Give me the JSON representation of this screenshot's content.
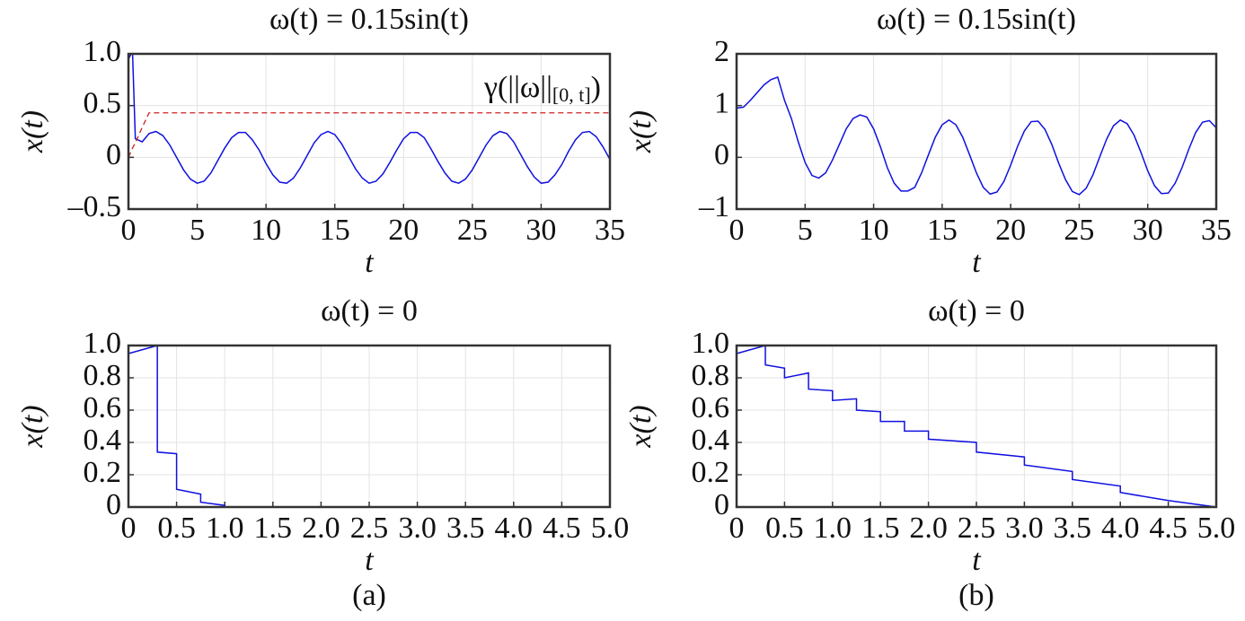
{
  "chart_data": [
    {
      "type": "line",
      "title": "ω(t) = 0.15sin(t)",
      "xlabel": "t",
      "ylabel": "x(t)",
      "x": [
        0,
        0.2,
        0.3,
        0.5,
        1,
        1.5,
        2,
        2.5,
        3,
        3.5,
        4,
        4.5,
        5,
        5.5,
        6,
        6.5,
        7,
        7.5,
        8,
        8.5,
        9,
        9.5,
        10,
        10.5,
        11,
        11.5,
        12,
        12.5,
        13,
        13.5,
        14,
        14.5,
        15,
        15.5,
        16,
        16.5,
        17,
        17.5,
        18,
        18.5,
        19,
        19.5,
        20,
        20.5,
        21,
        21.5,
        22,
        22.5,
        23,
        23.5,
        24,
        24.5,
        25,
        25.5,
        26,
        26.5,
        27,
        27.5,
        28,
        28.5,
        29,
        29.5,
        30,
        30.5,
        31,
        31.5,
        32,
        32.5,
        33,
        33.5,
        34,
        34.5,
        35
      ],
      "series": [
        {
          "color": "#1010e0",
          "style": "solid",
          "values": [
            0.95,
            1.0,
            1.0,
            0.18,
            0.15,
            0.23,
            0.25,
            0.21,
            0.12,
            0,
            -0.12,
            -0.21,
            -0.25,
            -0.23,
            -0.15,
            -0.03,
            0.09,
            0.19,
            0.24,
            0.24,
            0.17,
            0.07,
            -0.06,
            -0.17,
            -0.24,
            -0.25,
            -0.2,
            -0.1,
            0.02,
            0.14,
            0.22,
            0.25,
            0.22,
            0.13,
            0.01,
            -0.11,
            -0.2,
            -0.25,
            -0.23,
            -0.16,
            -0.05,
            0.07,
            0.18,
            0.24,
            0.24,
            0.19,
            0.08,
            -0.04,
            -0.15,
            -0.23,
            -0.25,
            -0.21,
            -0.12,
            0,
            0.12,
            0.21,
            0.25,
            0.23,
            0.15,
            0.03,
            -0.09,
            -0.19,
            -0.25,
            -0.24,
            -0.17,
            -0.07,
            0.06,
            0.17,
            0.24,
            0.25,
            0.2,
            0.1,
            -0.02
          ]
        },
        {
          "color": "#cc2020",
          "style": "dashed",
          "values": [
            0,
            0.06,
            0.09,
            0.14,
            0.29,
            0.43,
            0.43,
            0.43,
            0.43,
            0.43,
            0.43,
            0.43,
            0.43,
            0.43,
            0.43,
            0.43,
            0.43,
            0.43,
            0.43,
            0.43,
            0.43,
            0.43,
            0.43,
            0.43,
            0.43,
            0.43,
            0.43,
            0.43,
            0.43,
            0.43,
            0.43,
            0.43,
            0.43,
            0.43,
            0.43,
            0.43,
            0.43,
            0.43,
            0.43,
            0.43,
            0.43,
            0.43,
            0.43,
            0.43,
            0.43,
            0.43,
            0.43,
            0.43,
            0.43,
            0.43,
            0.43,
            0.43,
            0.43,
            0.43,
            0.43,
            0.43,
            0.43,
            0.43,
            0.43,
            0.43,
            0.43,
            0.43,
            0.43,
            0.43,
            0.43,
            0.43,
            0.43,
            0.43,
            0.43,
            0.43,
            0.43,
            0.43,
            0.43
          ]
        }
      ],
      "annotation": {
        "text": "γ(||ω||",
        "subscript": "[0, t]",
        "suffix": ")"
      },
      "xlim": [
        0,
        35
      ],
      "xticks": [
        0,
        5,
        10,
        15,
        20,
        25,
        30,
        35
      ],
      "ylim": [
        -0.5,
        1
      ],
      "yticks": [
        {
          "value": -0.5,
          "label": "–0.5"
        },
        0,
        0.5,
        {
          "value": 1,
          "label": "1.0"
        }
      ],
      "grid": true
    },
    {
      "type": "line",
      "title": "ω(t) = 0.15sin(t)",
      "xlabel": "t",
      "ylabel": "x(t)",
      "x": [
        0,
        0.5,
        1,
        1.5,
        2,
        2.5,
        3,
        3.5,
        4,
        4.5,
        5,
        5.5,
        6,
        6.5,
        7,
        7.5,
        8,
        8.5,
        9,
        9.5,
        10,
        10.5,
        11,
        11.5,
        12,
        12.5,
        13,
        13.5,
        14,
        14.5,
        15,
        15.5,
        16,
        16.5,
        17,
        17.5,
        18,
        18.5,
        19,
        19.5,
        20,
        20.5,
        21,
        21.5,
        22,
        22.5,
        23,
        23.5,
        24,
        24.5,
        25,
        25.5,
        26,
        26.5,
        27,
        27.5,
        28,
        28.5,
        29,
        29.5,
        30,
        30.5,
        31,
        31.5,
        32,
        32.5,
        33,
        33.5,
        34,
        34.5,
        35
      ],
      "series": [
        {
          "color": "#1010e0",
          "style": "solid",
          "values": [
            0.95,
            0.97,
            1.1,
            1.25,
            1.4,
            1.5,
            1.55,
            1.1,
            0.75,
            0.3,
            -0.1,
            -0.35,
            -0.4,
            -0.3,
            -0.05,
            0.25,
            0.55,
            0.75,
            0.82,
            0.78,
            0.55,
            0.2,
            -0.2,
            -0.5,
            -0.65,
            -0.65,
            -0.58,
            -0.3,
            0.05,
            0.39,
            0.63,
            0.72,
            0.63,
            0.39,
            0.05,
            -0.3,
            -0.58,
            -0.71,
            -0.67,
            -0.47,
            -0.15,
            0.21,
            0.51,
            0.69,
            0.7,
            0.54,
            0.25,
            -0.11,
            -0.43,
            -0.66,
            -0.72,
            -0.6,
            -0.34,
            0.01,
            0.35,
            0.61,
            0.72,
            0.65,
            0.43,
            0.1,
            -0.26,
            -0.55,
            -0.7,
            -0.69,
            -0.5,
            -0.2,
            0.16,
            0.48,
            0.68,
            0.71,
            0.57
          ]
        }
      ],
      "xlim": [
        0,
        35
      ],
      "xticks": [
        0,
        5,
        10,
        15,
        20,
        25,
        30,
        35
      ],
      "ylim": [
        -1,
        2
      ],
      "yticks": [
        {
          "value": -1,
          "label": "–1"
        },
        0,
        1,
        2
      ],
      "grid": true
    },
    {
      "type": "line",
      "title": "ω(t) = 0",
      "xlabel": "t",
      "ylabel": "x(t)",
      "x": [
        0,
        0.3,
        0.3,
        0.5,
        0.5,
        0.75,
        0.75,
        1,
        1,
        5
      ],
      "series": [
        {
          "color": "#1010e0",
          "style": "solid",
          "values": [
            0.95,
            1,
            0.34,
            0.33,
            0.11,
            0.08,
            0.03,
            0.01,
            0,
            0
          ]
        }
      ],
      "xlim": [
        0,
        5
      ],
      "xticks": [
        0,
        0.5,
        {
          "value": 1,
          "label": "1.0"
        },
        1.5,
        {
          "value": 2,
          "label": "2.0"
        },
        2.5,
        {
          "value": 3,
          "label": "3.0"
        },
        3.5,
        {
          "value": 4,
          "label": "4.0"
        },
        4.5,
        {
          "value": 5,
          "label": "5.0"
        }
      ],
      "ylim": [
        0,
        1
      ],
      "yticks": [
        0,
        0.2,
        0.4,
        0.6,
        0.8,
        {
          "value": 1,
          "label": "1.0"
        }
      ],
      "grid": true
    },
    {
      "type": "line",
      "title": "ω(t) = 0",
      "xlabel": "t",
      "ylabel": "x(t)",
      "x": [
        0,
        0.3,
        0.3,
        0.5,
        0.5,
        0.75,
        0.75,
        1,
        1,
        1.25,
        1.25,
        1.5,
        1.5,
        1.75,
        1.75,
        2,
        2,
        2.5,
        2.5,
        3,
        3,
        3.5,
        3.5,
        4,
        4,
        4.5,
        5
      ],
      "series": [
        {
          "color": "#1010e0",
          "style": "solid",
          "values": [
            0.95,
            1,
            0.88,
            0.86,
            0.8,
            0.83,
            0.73,
            0.72,
            0.66,
            0.67,
            0.6,
            0.59,
            0.53,
            0.53,
            0.47,
            0.47,
            0.42,
            0.4,
            0.34,
            0.31,
            0.26,
            0.22,
            0.17,
            0.13,
            0.09,
            0.04,
            0
          ]
        }
      ],
      "xlim": [
        0,
        5
      ],
      "xticks": [
        0,
        0.5,
        {
          "value": 1,
          "label": "1.0"
        },
        1.5,
        {
          "value": 2,
          "label": "2.0"
        },
        2.5,
        {
          "value": 3,
          "label": "3.0"
        },
        3.5,
        {
          "value": 4,
          "label": "4.0"
        },
        4.5,
        {
          "value": 5,
          "label": "5.0"
        }
      ],
      "ylim": [
        0,
        1
      ],
      "yticks": [
        0,
        0.2,
        0.4,
        0.6,
        0.8,
        {
          "value": 1,
          "label": "1.0"
        }
      ],
      "grid": true
    }
  ],
  "captions": [
    "(a)",
    "(b)"
  ]
}
